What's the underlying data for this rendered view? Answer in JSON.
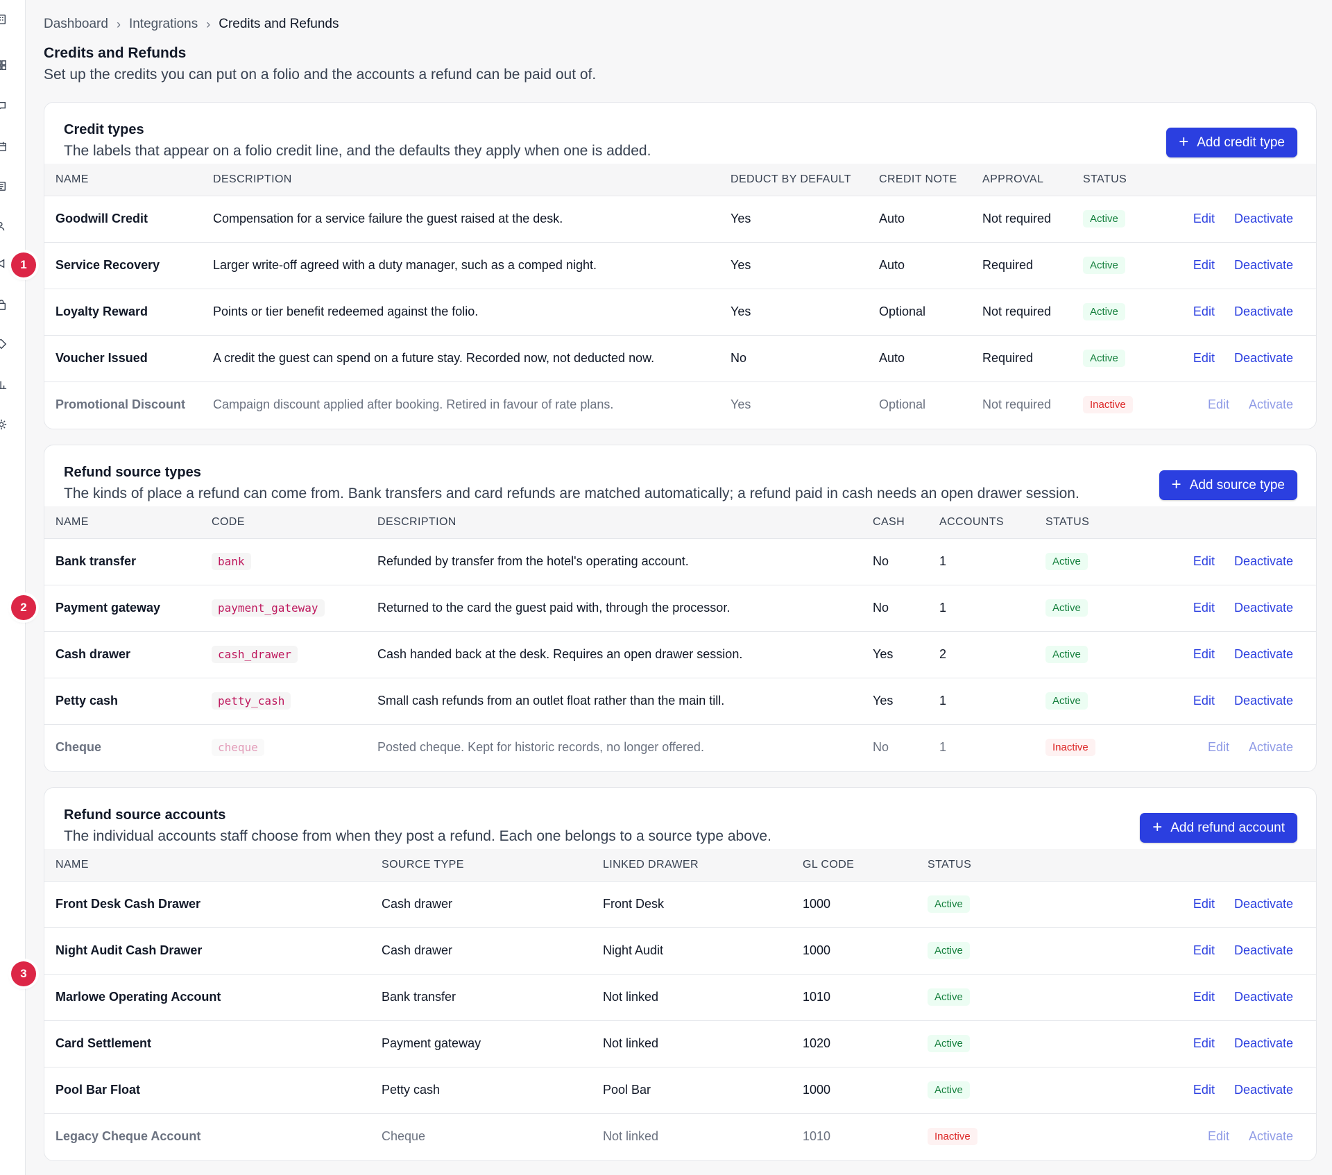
{
  "breadcrumb": [
    "Dashboard",
    "Integrations",
    "Credits and Refunds"
  ],
  "page": {
    "title": "Credits and Refunds",
    "subtitle": "Set up the credits you can put on a folio and the accounts a refund can be paid out of."
  },
  "steps": [
    "1",
    "2",
    "3"
  ],
  "colors": {
    "accent": "#2b3fe0",
    "active": "#15803d",
    "inactive": "#dc2626",
    "step": "#dc2646"
  },
  "credit_types": {
    "title": "Credit types",
    "description": "The labels that appear on a folio credit line, and the defaults they apply when one is added.",
    "add_label": "Add credit type",
    "columns": [
      "NAME",
      "DESCRIPTION",
      "DEDUCT BY DEFAULT",
      "CREDIT NOTE",
      "APPROVAL",
      "STATUS"
    ],
    "rows": [
      {
        "name": "Goodwill Credit",
        "description": "Compensation for a service failure the guest raised at the desk.",
        "deduct": "Yes",
        "credit_note": "Auto",
        "approval": "Not required",
        "status": "Active",
        "edit": "Edit",
        "toggle": "Deactivate"
      },
      {
        "name": "Service Recovery",
        "description": "Larger write-off agreed with a duty manager, such as a comped night.",
        "deduct": "Yes",
        "credit_note": "Auto",
        "approval": "Required",
        "status": "Active",
        "edit": "Edit",
        "toggle": "Deactivate"
      },
      {
        "name": "Loyalty Reward",
        "description": "Points or tier benefit redeemed against the folio.",
        "deduct": "Yes",
        "credit_note": "Optional",
        "approval": "Not required",
        "status": "Active",
        "edit": "Edit",
        "toggle": "Deactivate"
      },
      {
        "name": "Voucher Issued",
        "description": "A credit the guest can spend on a future stay. Recorded now, not deducted now.",
        "deduct": "No",
        "credit_note": "Auto",
        "approval": "Required",
        "status": "Active",
        "edit": "Edit",
        "toggle": "Deactivate"
      },
      {
        "name": "Promotional Discount",
        "description": "Campaign discount applied after booking. Retired in favour of rate plans.",
        "deduct": "Yes",
        "credit_note": "Optional",
        "approval": "Not required",
        "status": "Inactive",
        "edit": "Edit",
        "toggle": "Activate"
      }
    ]
  },
  "source_types": {
    "title": "Refund source types",
    "description": "The kinds of place a refund can come from. Bank transfers and card refunds are matched automatically; a refund paid in cash needs an open drawer session.",
    "add_label": "Add source type",
    "columns": [
      "NAME",
      "CODE",
      "DESCRIPTION",
      "CASH",
      "ACCOUNTS",
      "STATUS"
    ],
    "rows": [
      {
        "name": "Bank transfer",
        "code": "bank",
        "description": "Refunded by transfer from the hotel's operating account.",
        "cash": "No",
        "accounts": "1",
        "status": "Active",
        "edit": "Edit",
        "toggle": "Deactivate"
      },
      {
        "name": "Payment gateway",
        "code": "payment_gateway",
        "description": "Returned to the card the guest paid with, through the processor.",
        "cash": "No",
        "accounts": "1",
        "status": "Active",
        "edit": "Edit",
        "toggle": "Deactivate"
      },
      {
        "name": "Cash drawer",
        "code": "cash_drawer",
        "description": "Cash handed back at the desk. Requires an open drawer session.",
        "cash": "Yes",
        "accounts": "2",
        "status": "Active",
        "edit": "Edit",
        "toggle": "Deactivate"
      },
      {
        "name": "Petty cash",
        "code": "petty_cash",
        "description": "Small cash refunds from an outlet float rather than the main till.",
        "cash": "Yes",
        "accounts": "1",
        "status": "Active",
        "edit": "Edit",
        "toggle": "Deactivate"
      },
      {
        "name": "Cheque",
        "code": "cheque",
        "description": "Posted cheque. Kept for historic records, no longer offered.",
        "cash": "No",
        "accounts": "1",
        "status": "Inactive",
        "edit": "Edit",
        "toggle": "Activate"
      }
    ]
  },
  "accounts": {
    "title": "Refund source accounts",
    "description": "The individual accounts staff choose from when they post a refund. Each one belongs to a source type above.",
    "add_label": "Add refund account",
    "columns": [
      "NAME",
      "SOURCE TYPE",
      "LINKED DRAWER",
      "GL CODE",
      "STATUS"
    ],
    "rows": [
      {
        "name": "Front Desk Cash Drawer",
        "source_type": "Cash drawer",
        "drawer": "Front Desk",
        "gl": "1000",
        "status": "Active",
        "edit": "Edit",
        "toggle": "Deactivate"
      },
      {
        "name": "Night Audit Cash Drawer",
        "source_type": "Cash drawer",
        "drawer": "Night Audit",
        "gl": "1000",
        "status": "Active",
        "edit": "Edit",
        "toggle": "Deactivate"
      },
      {
        "name": "Marlowe Operating Account",
        "source_type": "Bank transfer",
        "drawer": "Not linked",
        "gl": "1010",
        "status": "Active",
        "edit": "Edit",
        "toggle": "Deactivate"
      },
      {
        "name": "Card Settlement",
        "source_type": "Payment gateway",
        "drawer": "Not linked",
        "gl": "1020",
        "status": "Active",
        "edit": "Edit",
        "toggle": "Deactivate"
      },
      {
        "name": "Pool Bar Float",
        "source_type": "Petty cash",
        "drawer": "Pool Bar",
        "gl": "1000",
        "status": "Active",
        "edit": "Edit",
        "toggle": "Deactivate"
      },
      {
        "name": "Legacy Cheque Account",
        "source_type": "Cheque",
        "drawer": "Not linked",
        "gl": "1010",
        "status": "Inactive",
        "edit": "Edit",
        "toggle": "Activate"
      }
    ]
  }
}
